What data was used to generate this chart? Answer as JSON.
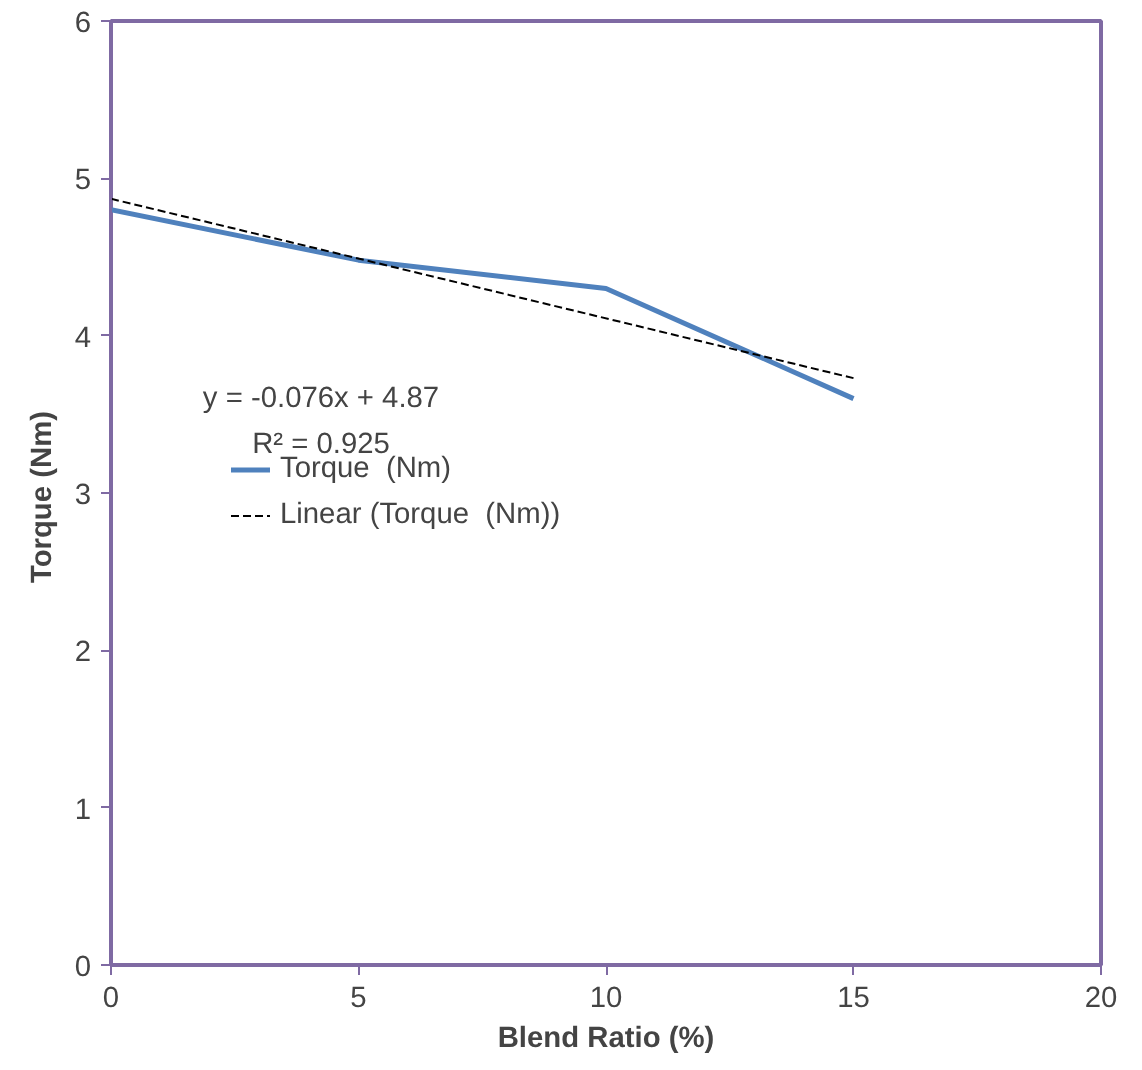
{
  "chart_data": {
    "type": "line",
    "xlabel": "Blend Ratio (%)",
    "ylabel": "Torque  (Nm)",
    "x": [
      0,
      5,
      10,
      15
    ],
    "series": [
      {
        "name": "Torque  (Nm)",
        "color": "#4f81bd",
        "values": [
          4.8,
          4.48,
          4.3,
          3.6
        ],
        "line_style": "solid"
      },
      {
        "name": "Linear (Torque  (Nm))",
        "color": "#000000",
        "type": "line",
        "x": [
          0,
          15
        ],
        "values": [
          4.87,
          3.73
        ],
        "line_style": "dashed"
      }
    ],
    "annotations": [
      "y = -0.076x + 4.87",
      "R² = 0.925"
    ],
    "xlim": [
      0,
      20
    ],
    "ylim": [
      0,
      6
    ],
    "xticks": [
      0,
      5,
      10,
      15,
      20
    ],
    "yticks": [
      0,
      1,
      2,
      3,
      4,
      5,
      6
    ],
    "grid": false,
    "legend": "left",
    "marker": "none"
  }
}
